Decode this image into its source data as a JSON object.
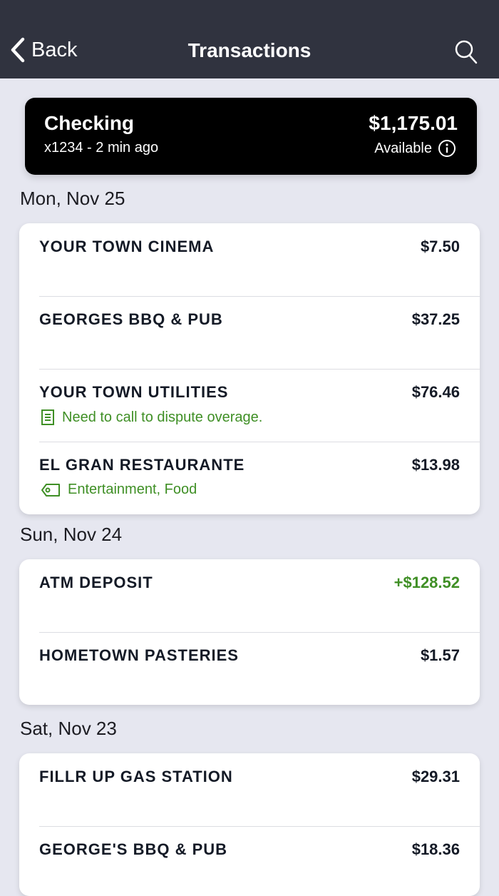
{
  "header": {
    "back_label": "Back",
    "title": "Transactions"
  },
  "account": {
    "name": "Checking",
    "subtitle": "x1234 - 2 min ago",
    "balance": "$1,175.01",
    "balance_label": "Available"
  },
  "colors": {
    "header": "#30333f",
    "background": "#e6e7f0",
    "positive": "#3f8f25"
  },
  "groups": [
    {
      "date": "Mon, Nov 25",
      "items": [
        {
          "name": "YOUR TOWN CINEMA",
          "amount": "$7.50"
        },
        {
          "name": "GEORGES BBQ & PUB",
          "amount": "$37.25"
        },
        {
          "name": "YOUR TOWN UTILITIES",
          "amount": "$76.46",
          "note": "Need to call to dispute overage."
        },
        {
          "name": "EL GRAN RESTAURANTE",
          "amount": "$13.98",
          "tags": "Entertainment, Food"
        }
      ]
    },
    {
      "date": "Sun, Nov 24",
      "items": [
        {
          "name": "ATM DEPOSIT",
          "amount": "+$128.52"
        },
        {
          "name": "HOMETOWN PASTERIES",
          "amount": "$1.57"
        }
      ]
    },
    {
      "date": "Sat, Nov 23",
      "items": [
        {
          "name": "FILLR UP GAS STATION",
          "amount": "$29.31"
        },
        {
          "name": "GEORGE'S BBQ & PUB",
          "amount": "$18.36"
        }
      ]
    }
  ]
}
